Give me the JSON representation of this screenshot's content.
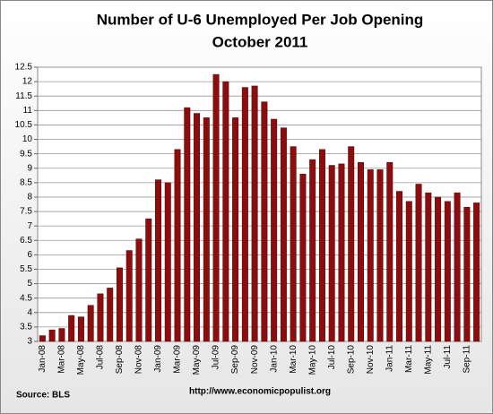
{
  "chart_data": {
    "type": "bar",
    "title": "Number of U-6 Unemployed Per Job Opening",
    "subtitle": "October 2011",
    "source": "Source:  BLS",
    "url": "http://www.economicpopulist.org",
    "categories": [
      "Jan-08",
      null,
      "Mar-08",
      null,
      "May-08",
      null,
      "Jul-08",
      null,
      "Sep-08",
      null,
      "Nov-08",
      null,
      "Jan-09",
      null,
      "Mar-09",
      null,
      "May-09",
      null,
      "Jul-09",
      null,
      "Sep-09",
      null,
      "Nov-09",
      null,
      "Jan-10",
      null,
      "Mar-10",
      null,
      "May-10",
      null,
      "Jul-10",
      null,
      "Sep-10",
      null,
      "Nov-10",
      null,
      "Jan-11",
      null,
      "Mar-11",
      null,
      "May-11",
      null,
      "Jul-11",
      null,
      "Sep-11",
      null
    ],
    "values": [
      3.2,
      3.4,
      3.45,
      3.9,
      3.85,
      4.25,
      4.65,
      4.85,
      5.55,
      6.15,
      6.55,
      7.25,
      8.6,
      8.5,
      9.65,
      11.1,
      10.9,
      10.75,
      12.25,
      12.0,
      10.75,
      11.8,
      11.85,
      11.3,
      10.7,
      10.4,
      9.75,
      8.8,
      9.3,
      9.65,
      9.1,
      9.15,
      9.75,
      9.2,
      8.95,
      8.95,
      9.2,
      8.2,
      7.85,
      8.45,
      8.15,
      8.0,
      7.85,
      8.15,
      7.65,
      7.8
    ],
    "color": "#8b0d0d",
    "ylim": [
      3,
      12.5
    ],
    "yticks": [
      3,
      3.5,
      4,
      4.5,
      5,
      5.5,
      6,
      6.5,
      7,
      7.5,
      8,
      8.5,
      9,
      9.5,
      10,
      10.5,
      11,
      11.5,
      12,
      12.5
    ],
    "grid": true
  }
}
